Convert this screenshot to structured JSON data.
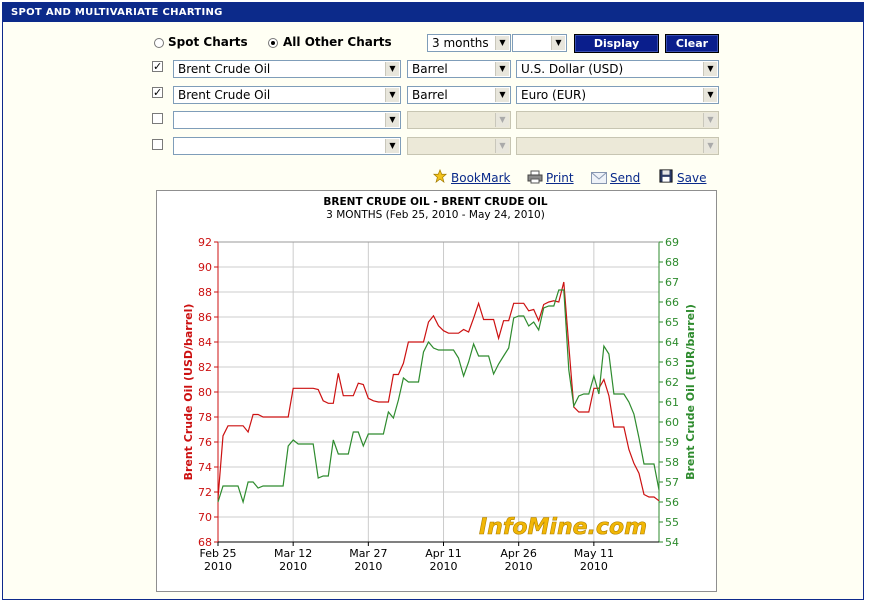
{
  "panel": {
    "title": "SPOT AND MULTIVARIATE CHARTING"
  },
  "mode": {
    "spot_label": "Spot Charts",
    "other_label": "All Other Charts",
    "selected": "All Other Charts"
  },
  "period": {
    "value": "3 months",
    "second_value": ""
  },
  "buttons": {
    "display": "Display",
    "clear": "Clear"
  },
  "rows": [
    {
      "checked": true,
      "commodity": "Brent Crude Oil",
      "unit": "Barrel",
      "currency": "U.S. Dollar (USD)"
    },
    {
      "checked": true,
      "commodity": "Brent Crude Oil",
      "unit": "Barrel",
      "currency": "Euro (EUR)"
    },
    {
      "checked": false,
      "commodity": "",
      "unit": "",
      "currency": ""
    },
    {
      "checked": false,
      "commodity": "",
      "unit": "",
      "currency": ""
    }
  ],
  "tools": {
    "bookmark": "BookMark",
    "print": "Print",
    "send": "Send",
    "save": "Save"
  },
  "watermark": "InfoMine.com",
  "colors": {
    "usd_series": "#cc1111",
    "eur_series": "#2e8b2e",
    "header": "#0c2a8a"
  },
  "chart_data": {
    "type": "line",
    "title": "BRENT CRUDE OIL - BRENT CRUDE OIL",
    "subtitle": "3 MONTHS (Feb 25, 2010 - May 24, 2010)",
    "ylabel_left": "Brent Crude Oil (USD/barrel)",
    "ylabel_right": "Brent Crude Oil (EUR/barrel)",
    "ylim_left": [
      68,
      92
    ],
    "ylim_right": [
      54,
      69
    ],
    "yticks_left": [
      68,
      70,
      72,
      74,
      76,
      78,
      80,
      82,
      84,
      86,
      88,
      90,
      92
    ],
    "yticks_right": [
      54,
      55,
      56,
      57,
      58,
      59,
      60,
      61,
      62,
      63,
      64,
      65,
      66,
      67,
      68,
      69
    ],
    "xlim": [
      "2010-02-25",
      "2010-05-24"
    ],
    "xticks": [
      {
        "date": "2010-02-25",
        "label1": "Feb 25",
        "label2": "2010"
      },
      {
        "date": "2010-03-12",
        "label1": "Mar 12",
        "label2": "2010"
      },
      {
        "date": "2010-03-27",
        "label1": "Mar 27",
        "label2": "2010"
      },
      {
        "date": "2010-04-11",
        "label1": "Apr 11",
        "label2": "2010"
      },
      {
        "date": "2010-04-26",
        "label1": "Apr 26",
        "label2": "2010"
      },
      {
        "date": "2010-05-11",
        "label1": "May 11",
        "label2": "2010"
      }
    ],
    "grid": true,
    "series": [
      {
        "name": "Brent Crude Oil (USD/barrel)",
        "axis": "left",
        "color": "#cc1111",
        "points": [
          [
            "2010-02-25",
            71.5
          ],
          [
            "2010-02-26",
            76.5
          ],
          [
            "2010-02-27",
            77.3
          ],
          [
            "2010-03-01",
            77.3
          ],
          [
            "2010-03-02",
            77.3
          ],
          [
            "2010-03-03",
            76.8
          ],
          [
            "2010-03-04",
            78.2
          ],
          [
            "2010-03-05",
            78.2
          ],
          [
            "2010-03-06",
            78.0
          ],
          [
            "2010-03-08",
            78.0
          ],
          [
            "2010-03-09",
            78.0
          ],
          [
            "2010-03-10",
            78.0
          ],
          [
            "2010-03-11",
            78.0
          ],
          [
            "2010-03-12",
            80.3
          ],
          [
            "2010-03-13",
            80.3
          ],
          [
            "2010-03-15",
            80.3
          ],
          [
            "2010-03-16",
            80.3
          ],
          [
            "2010-03-17",
            80.2
          ],
          [
            "2010-03-18",
            79.3
          ],
          [
            "2010-03-19",
            79.1
          ],
          [
            "2010-03-20",
            79.1
          ],
          [
            "2010-03-21",
            81.5
          ],
          [
            "2010-03-22",
            79.7
          ],
          [
            "2010-03-23",
            79.7
          ],
          [
            "2010-03-24",
            79.7
          ],
          [
            "2010-03-25",
            80.7
          ],
          [
            "2010-03-26",
            80.6
          ],
          [
            "2010-03-27",
            79.5
          ],
          [
            "2010-03-28",
            79.3
          ],
          [
            "2010-03-29",
            79.2
          ],
          [
            "2010-03-30",
            79.2
          ],
          [
            "2010-03-31",
            79.2
          ],
          [
            "2010-04-01",
            81.4
          ],
          [
            "2010-04-02",
            81.4
          ],
          [
            "2010-04-03",
            82.3
          ],
          [
            "2010-04-04",
            84.0
          ],
          [
            "2010-04-05",
            84.0
          ],
          [
            "2010-04-06",
            84.0
          ],
          [
            "2010-04-07",
            84.0
          ],
          [
            "2010-04-08",
            85.6
          ],
          [
            "2010-04-09",
            86.1
          ],
          [
            "2010-04-10",
            85.3
          ],
          [
            "2010-04-11",
            84.9
          ],
          [
            "2010-04-12",
            84.7
          ],
          [
            "2010-04-13",
            84.7
          ],
          [
            "2010-04-14",
            84.7
          ],
          [
            "2010-04-15",
            85.0
          ],
          [
            "2010-04-16",
            84.8
          ],
          [
            "2010-04-17",
            85.9
          ],
          [
            "2010-04-18",
            87.1
          ],
          [
            "2010-04-19",
            85.8
          ],
          [
            "2010-04-20",
            85.8
          ],
          [
            "2010-04-21",
            85.8
          ],
          [
            "2010-04-22",
            84.3
          ],
          [
            "2010-04-23",
            85.7
          ],
          [
            "2010-04-24",
            85.7
          ],
          [
            "2010-04-25",
            87.1
          ],
          [
            "2010-04-26",
            87.1
          ],
          [
            "2010-04-27",
            87.1
          ],
          [
            "2010-04-28",
            86.5
          ],
          [
            "2010-04-29",
            86.6
          ],
          [
            "2010-04-30",
            85.7
          ],
          [
            "2010-05-01",
            87.0
          ],
          [
            "2010-05-02",
            87.2
          ],
          [
            "2010-05-03",
            87.3
          ],
          [
            "2010-05-04",
            87.2
          ],
          [
            "2010-05-05",
            88.8
          ],
          [
            "2010-05-06",
            83.7
          ],
          [
            "2010-05-07",
            78.8
          ],
          [
            "2010-05-08",
            78.4
          ],
          [
            "2010-05-09",
            78.4
          ],
          [
            "2010-05-10",
            78.4
          ],
          [
            "2010-05-11",
            80.3
          ],
          [
            "2010-05-12",
            80.3
          ],
          [
            "2010-05-13",
            81.0
          ],
          [
            "2010-05-14",
            79.7
          ],
          [
            "2010-05-15",
            77.2
          ],
          [
            "2010-05-16",
            77.2
          ],
          [
            "2010-05-17",
            77.2
          ],
          [
            "2010-05-18",
            75.4
          ],
          [
            "2010-05-19",
            74.3
          ],
          [
            "2010-05-20",
            73.5
          ],
          [
            "2010-05-21",
            71.8
          ],
          [
            "2010-05-22",
            71.6
          ],
          [
            "2010-05-23",
            71.6
          ],
          [
            "2010-05-24",
            71.3
          ]
        ]
      },
      {
        "name": "Brent Crude Oil (EUR/barrel)",
        "axis": "right",
        "color": "#2e8b2e",
        "points": [
          [
            "2010-02-25",
            56.0
          ],
          [
            "2010-02-26",
            56.8
          ],
          [
            "2010-02-27",
            56.8
          ],
          [
            "2010-03-01",
            56.8
          ],
          [
            "2010-03-02",
            56.0
          ],
          [
            "2010-03-03",
            57.0
          ],
          [
            "2010-03-04",
            57.0
          ],
          [
            "2010-03-05",
            56.7
          ],
          [
            "2010-03-06",
            56.8
          ],
          [
            "2010-03-08",
            56.8
          ],
          [
            "2010-03-09",
            56.8
          ],
          [
            "2010-03-10",
            56.8
          ],
          [
            "2010-03-11",
            58.8
          ],
          [
            "2010-03-12",
            59.1
          ],
          [
            "2010-03-13",
            58.9
          ],
          [
            "2010-03-15",
            58.9
          ],
          [
            "2010-03-16",
            58.9
          ],
          [
            "2010-03-17",
            57.2
          ],
          [
            "2010-03-18",
            57.3
          ],
          [
            "2010-03-19",
            57.3
          ],
          [
            "2010-03-20",
            59.1
          ],
          [
            "2010-03-21",
            58.4
          ],
          [
            "2010-03-22",
            58.4
          ],
          [
            "2010-03-23",
            58.4
          ],
          [
            "2010-03-24",
            59.5
          ],
          [
            "2010-03-25",
            59.5
          ],
          [
            "2010-03-26",
            58.8
          ],
          [
            "2010-03-27",
            59.4
          ],
          [
            "2010-03-28",
            59.4
          ],
          [
            "2010-03-29",
            59.4
          ],
          [
            "2010-03-30",
            59.4
          ],
          [
            "2010-03-31",
            60.5
          ],
          [
            "2010-04-01",
            60.2
          ],
          [
            "2010-04-02",
            61.1
          ],
          [
            "2010-04-03",
            62.2
          ],
          [
            "2010-04-04",
            62.0
          ],
          [
            "2010-04-05",
            62.0
          ],
          [
            "2010-04-06",
            62.0
          ],
          [
            "2010-04-07",
            63.5
          ],
          [
            "2010-04-08",
            64.0
          ],
          [
            "2010-04-09",
            63.7
          ],
          [
            "2010-04-10",
            63.6
          ],
          [
            "2010-04-11",
            63.6
          ],
          [
            "2010-04-12",
            63.6
          ],
          [
            "2010-04-13",
            63.6
          ],
          [
            "2010-04-14",
            63.2
          ],
          [
            "2010-04-15",
            62.3
          ],
          [
            "2010-04-16",
            63.0
          ],
          [
            "2010-04-17",
            63.9
          ],
          [
            "2010-04-18",
            63.3
          ],
          [
            "2010-04-19",
            63.3
          ],
          [
            "2010-04-20",
            63.3
          ],
          [
            "2010-04-21",
            62.4
          ],
          [
            "2010-04-22",
            62.9
          ],
          [
            "2010-04-23",
            63.3
          ],
          [
            "2010-04-24",
            63.7
          ],
          [
            "2010-04-25",
            65.2
          ],
          [
            "2010-04-26",
            65.3
          ],
          [
            "2010-04-27",
            65.3
          ],
          [
            "2010-04-28",
            64.8
          ],
          [
            "2010-04-29",
            65.0
          ],
          [
            "2010-04-30",
            64.6
          ],
          [
            "2010-05-01",
            65.7
          ],
          [
            "2010-05-02",
            65.8
          ],
          [
            "2010-05-03",
            65.8
          ],
          [
            "2010-05-04",
            66.6
          ],
          [
            "2010-05-05",
            66.6
          ],
          [
            "2010-05-06",
            62.6
          ],
          [
            "2010-05-07",
            60.8
          ],
          [
            "2010-05-08",
            61.3
          ],
          [
            "2010-05-09",
            61.4
          ],
          [
            "2010-05-10",
            61.4
          ],
          [
            "2010-05-11",
            62.3
          ],
          [
            "2010-05-12",
            61.4
          ],
          [
            "2010-05-13",
            63.8
          ],
          [
            "2010-05-14",
            63.4
          ],
          [
            "2010-05-15",
            61.4
          ],
          [
            "2010-05-16",
            61.4
          ],
          [
            "2010-05-17",
            61.4
          ],
          [
            "2010-05-18",
            61.0
          ],
          [
            "2010-05-19",
            60.4
          ],
          [
            "2010-05-20",
            59.2
          ],
          [
            "2010-05-21",
            57.9
          ],
          [
            "2010-05-22",
            57.9
          ],
          [
            "2010-05-23",
            57.9
          ],
          [
            "2010-05-24",
            56.6
          ]
        ]
      }
    ]
  }
}
